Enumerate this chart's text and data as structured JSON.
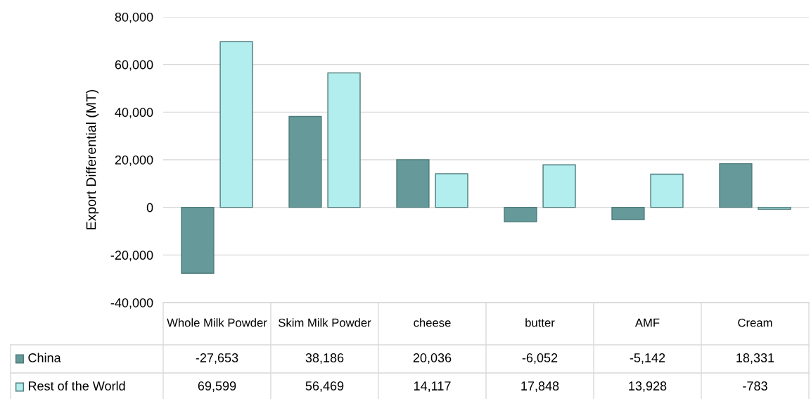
{
  "chart_data": {
    "type": "bar",
    "ylabel": "Export Differential (MT)",
    "categories": [
      "Whole Milk Powder",
      "Skim Milk Powder",
      "cheese",
      "butter",
      "AMF",
      "Cream"
    ],
    "series": [
      {
        "name": "China",
        "color": "#669999",
        "values": [
          -27653,
          38186,
          20036,
          -6052,
          -5142,
          18331
        ],
        "value_labels": [
          "-27,653",
          "38,186",
          "20,036",
          "-6,052",
          "-5,142",
          "18,331"
        ]
      },
      {
        "name": "Rest of the World",
        "color": "#b2eeee",
        "values": [
          69599,
          56469,
          14117,
          17848,
          13928,
          -783
        ],
        "value_labels": [
          "69,599",
          "56,469",
          "14,117",
          "17,848",
          "13,928",
          "-783"
        ]
      }
    ],
    "ylim": [
      -40000,
      80000
    ],
    "yticks": [
      {
        "value": -40000,
        "label": "-40,000"
      },
      {
        "value": -20000,
        "label": "-20,000"
      },
      {
        "value": 0,
        "label": "0"
      },
      {
        "value": 20000,
        "label": "20,000"
      },
      {
        "value": 40000,
        "label": "40,000"
      },
      {
        "value": 60000,
        "label": "60,000"
      },
      {
        "value": 80000,
        "label": "80,000"
      }
    ],
    "grid": "y",
    "legend": "bottom"
  }
}
